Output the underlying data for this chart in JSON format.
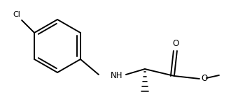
{
  "bg_color": "#ffffff",
  "line_color": "#000000",
  "lw": 1.4,
  "figsize": [
    3.3,
    1.32
  ],
  "dpi": 100,
  "cl_label": "Cl",
  "nh_label": "NH",
  "o_label": "O",
  "o2_label": "O"
}
